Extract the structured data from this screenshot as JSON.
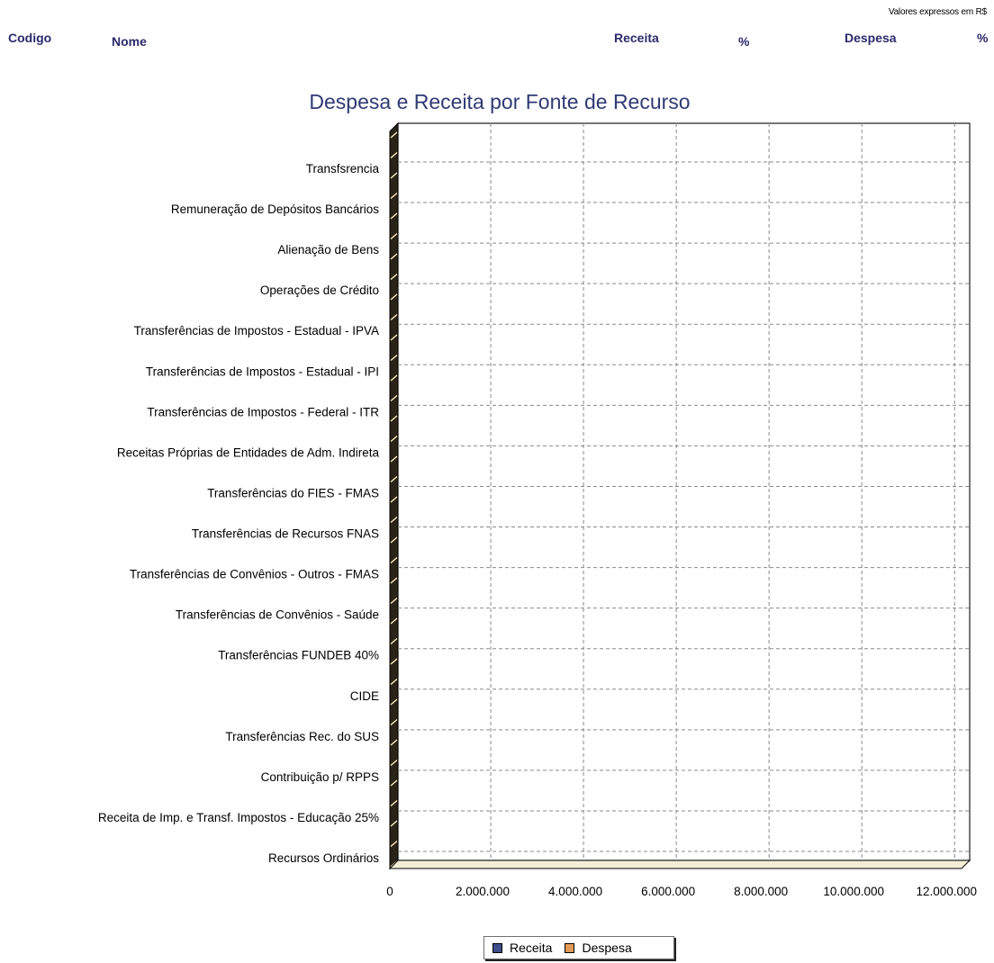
{
  "header": {
    "unit_note": "Valores expressos em R$",
    "columns": {
      "codigo": "Codigo",
      "nome": "Nome",
      "receita": "Receita",
      "pct_receita": "%",
      "despesa": "Despesa",
      "pct_despesa": "%"
    }
  },
  "chart_data": {
    "type": "bar",
    "orientation": "horizontal",
    "title": "Despesa e Receita por Fonte de Recurso",
    "xlabel": "",
    "ylabel": "",
    "xlim": [
      0,
      12500000
    ],
    "x_ticks": [
      0,
      2000000,
      4000000,
      6000000,
      8000000,
      10000000,
      12000000
    ],
    "x_tick_labels": [
      "0",
      "2.000.000",
      "4.000.000",
      "6.000.000",
      "8.000.000",
      "10.000.000",
      "12.000.000"
    ],
    "grid": true,
    "legend_position": "bottom",
    "category_labels": [
      "Transfsrencia",
      "Remuneração de Depósitos Bancários",
      "Alienação de Bens",
      "Operações de Crédito",
      "Transferências de Impostos - Estadual - IPVA",
      "Transferências de Impostos - Estadual - IPI",
      "Transferências de Impostos - Federal - ITR",
      "Receitas Próprias de Entidades de Adm. Indireta",
      "Transferências do FIES - FMAS",
      "Transferências de Recursos FNAS",
      "Transferências de Convênios - Outros - FMAS",
      "Transferências de Convênios - Saúde",
      "Transferências FUNDEB 40%",
      "CIDE",
      "Transferências Rec. do SUS",
      "Contribuição p/ RPPS",
      "Receita de Imp. e Transf. Impostos - Educação 25%",
      "Recursos Ordinários"
    ],
    "series": [
      {
        "name": "Receita",
        "color": "#3f4d8c"
      },
      {
        "name": "Despesa",
        "color": "#e49a55"
      }
    ]
  },
  "legend": {
    "receita_label": "Receita",
    "despesa_label": "Despesa",
    "receita_color": "#3f4d8c",
    "despesa_color": "#e49a55"
  }
}
